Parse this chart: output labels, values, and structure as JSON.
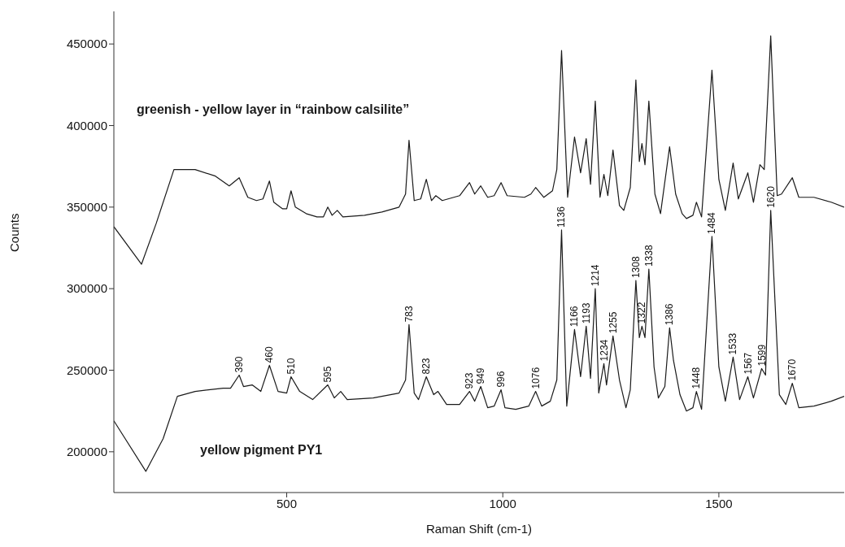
{
  "chart_data": {
    "type": "line",
    "xlabel": "Raman Shift (cm-1)",
    "ylabel": "Counts",
    "xlim": [
      100,
      1790
    ],
    "ylim": [
      175000,
      470000
    ],
    "xticks": [
      500,
      1000,
      1500
    ],
    "yticks": [
      200000,
      250000,
      300000,
      350000,
      400000,
      450000
    ],
    "grid": false,
    "legend": false,
    "marker": "none",
    "line_style": "solid",
    "series": [
      {
        "name": "greenish - yellow layer in “rainbow calsilite”",
        "color": "#1a1a1a",
        "x": [
          100,
          164,
          198,
          239,
          288,
          335,
          367,
          390,
          410,
          430,
          445,
          460,
          470,
          490,
          500,
          510,
          520,
          545,
          570,
          585,
          595,
          605,
          617,
          630,
          680,
          720,
          760,
          775,
          783,
          795,
          810,
          823,
          835,
          845,
          860,
          900,
          923,
          935,
          949,
          965,
          980,
          996,
          1010,
          1050,
          1065,
          1076,
          1095,
          1115,
          1125,
          1136,
          1150,
          1166,
          1180,
          1193,
          1203,
          1214,
          1225,
          1234,
          1243,
          1255,
          1270,
          1280,
          1295,
          1308,
          1316,
          1322,
          1329,
          1338,
          1352,
          1365,
          1386,
          1400,
          1415,
          1425,
          1440,
          1448,
          1460,
          1484,
          1500,
          1515,
          1533,
          1545,
          1567,
          1580,
          1595,
          1605,
          1620,
          1635,
          1645,
          1670,
          1685,
          1720,
          1760,
          1790
        ],
        "values": [
          338000,
          315000,
          340000,
          373000,
          373000,
          369000,
          363000,
          368000,
          356000,
          354000,
          355000,
          366000,
          353000,
          349000,
          349000,
          360000,
          350000,
          346000,
          344000,
          344000,
          350000,
          345000,
          348000,
          344000,
          345000,
          347000,
          350000,
          358000,
          391000,
          354000,
          355000,
          367000,
          354000,
          357000,
          354000,
          357000,
          365000,
          358000,
          363000,
          356000,
          357000,
          365000,
          357000,
          356000,
          358000,
          362000,
          356000,
          360000,
          373000,
          446000,
          356000,
          393000,
          371000,
          392000,
          364000,
          415000,
          356000,
          370000,
          357000,
          385000,
          351000,
          348000,
          362000,
          428000,
          378000,
          389000,
          376000,
          415000,
          358000,
          346000,
          387000,
          358000,
          346000,
          343000,
          345000,
          353000,
          344000,
          434000,
          367000,
          348000,
          377000,
          355000,
          371000,
          353000,
          376000,
          373000,
          455000,
          357000,
          358000,
          368000,
          356000,
          356000,
          353000,
          350000
        ]
      },
      {
        "name": "yellow pigment PY1",
        "color": "#1a1a1a",
        "x": [
          100,
          174,
          214,
          247,
          288,
          353,
          370,
          390,
          400,
          420,
          440,
          460,
          480,
          500,
          510,
          530,
          560,
          595,
          610,
          625,
          640,
          700,
          760,
          775,
          783,
          795,
          805,
          823,
          840,
          850,
          870,
          900,
          923,
          935,
          949,
          965,
          980,
          996,
          1005,
          1030,
          1060,
          1076,
          1090,
          1110,
          1125,
          1136,
          1148,
          1166,
          1180,
          1193,
          1203,
          1214,
          1222,
          1234,
          1240,
          1255,
          1270,
          1285,
          1295,
          1308,
          1316,
          1322,
          1329,
          1338,
          1350,
          1360,
          1375,
          1386,
          1395,
          1410,
          1425,
          1440,
          1448,
          1460,
          1484,
          1500,
          1515,
          1533,
          1548,
          1567,
          1580,
          1599,
          1608,
          1620,
          1640,
          1655,
          1670,
          1685,
          1720,
          1760,
          1790
        ],
        "values": [
          219000,
          188000,
          208000,
          234000,
          237000,
          239000,
          239000,
          247000,
          240000,
          241000,
          237000,
          253000,
          237000,
          236000,
          246000,
          237000,
          232000,
          241000,
          233000,
          237000,
          232000,
          233000,
          236000,
          244000,
          278000,
          236000,
          232000,
          246000,
          235000,
          237000,
          229000,
          229000,
          237000,
          231000,
          240000,
          227000,
          228000,
          238000,
          227000,
          226000,
          228000,
          237000,
          228000,
          231000,
          244000,
          336000,
          228000,
          275000,
          246000,
          277000,
          245000,
          300000,
          236000,
          254000,
          241000,
          271000,
          244000,
          227000,
          238000,
          305000,
          270000,
          277000,
          270000,
          312000,
          252000,
          233000,
          240000,
          276000,
          256000,
          235000,
          225000,
          227000,
          237000,
          226000,
          332000,
          252000,
          231000,
          258000,
          232000,
          246000,
          233000,
          251000,
          247000,
          348000,
          235000,
          229000,
          242000,
          227000,
          228000,
          231000,
          234000
        ]
      }
    ],
    "annotations": [
      {
        "text": "390",
        "x": 390,
        "y": 247000
      },
      {
        "text": "460",
        "x": 460,
        "y": 253000
      },
      {
        "text": "510",
        "x": 510,
        "y": 246000
      },
      {
        "text": "595",
        "x": 595,
        "y": 241000
      },
      {
        "text": "783",
        "x": 783,
        "y": 278000
      },
      {
        "text": "823",
        "x": 823,
        "y": 246000
      },
      {
        "text": "923",
        "x": 923,
        "y": 237000
      },
      {
        "text": "949",
        "x": 949,
        "y": 240000
      },
      {
        "text": "996",
        "x": 996,
        "y": 238000
      },
      {
        "text": "1076",
        "x": 1076,
        "y": 237000
      },
      {
        "text": "1136",
        "x": 1136,
        "y": 336000
      },
      {
        "text": "1166",
        "x": 1166,
        "y": 275000
      },
      {
        "text": "1193",
        "x": 1193,
        "y": 277000
      },
      {
        "text": "1214",
        "x": 1214,
        "y": 300000
      },
      {
        "text": "1234",
        "x": 1234,
        "y": 254000
      },
      {
        "text": "1255",
        "x": 1255,
        "y": 271000
      },
      {
        "text": "1308",
        "x": 1308,
        "y": 305000
      },
      {
        "text": "1322",
        "x": 1322,
        "y": 277000
      },
      {
        "text": "1338",
        "x": 1338,
        "y": 312000
      },
      {
        "text": "1386",
        "x": 1386,
        "y": 276000
      },
      {
        "text": "1448",
        "x": 1448,
        "y": 237000
      },
      {
        "text": "1484",
        "x": 1484,
        "y": 332000
      },
      {
        "text": "1533",
        "x": 1533,
        "y": 258000
      },
      {
        "text": "1567",
        "x": 1567,
        "y": 246000
      },
      {
        "text": "1599",
        "x": 1599,
        "y": 251000
      },
      {
        "text": "1620",
        "x": 1620,
        "y": 348000
      },
      {
        "text": "1670",
        "x": 1670,
        "y": 242000
      }
    ]
  }
}
